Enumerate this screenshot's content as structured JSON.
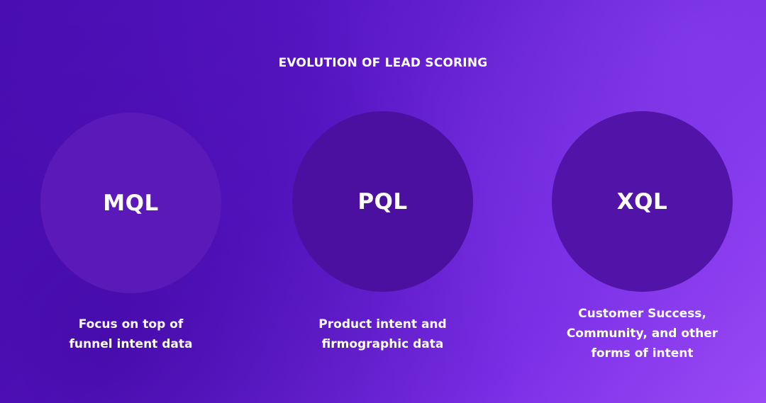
{
  "title": "EVOLUTION OF LEAD SCORING",
  "stages": [
    {
      "label": "MQL",
      "description": "Focus on top of\nfunnel intent data"
    },
    {
      "label": "PQL",
      "description": "Product intent and\nfirmographic data"
    },
    {
      "label": "XQL",
      "description": "Customer Success,\nCommunity, and other\nforms of intent"
    }
  ],
  "colors": {
    "background_start": "#4a0eb3",
    "background_end": "#9a49f5",
    "circle_mql": "#5a19b8",
    "circle_pql": "#4c10a0",
    "circle_xql": "#5213a8",
    "text": "#ffffff"
  }
}
